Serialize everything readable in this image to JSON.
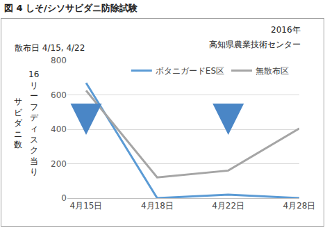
{
  "chart_data": {
    "type": "line",
    "title": "図 4 しそ/シソサビダニ防除試験",
    "annotations": [
      "散布日 4/15, 4/22",
      "2016年",
      "高知県農業技術センター"
    ],
    "ylabel": "16リーフディスク当り サビダニ数",
    "categories": [
      "4月15日",
      "4月18日",
      "4月22日",
      "4月28日"
    ],
    "series": [
      {
        "name": "ボタニガードES区",
        "color": "#5b9bd5",
        "values": [
          670,
          0,
          20,
          0
        ]
      },
      {
        "name": "無散布区",
        "color": "#a5a5a5",
        "values": [
          625,
          120,
          160,
          405
        ]
      }
    ],
    "ylim": [
      0,
      800
    ],
    "yticks": [
      0,
      200,
      400,
      600,
      800
    ],
    "grid": true,
    "legend": "top"
  }
}
